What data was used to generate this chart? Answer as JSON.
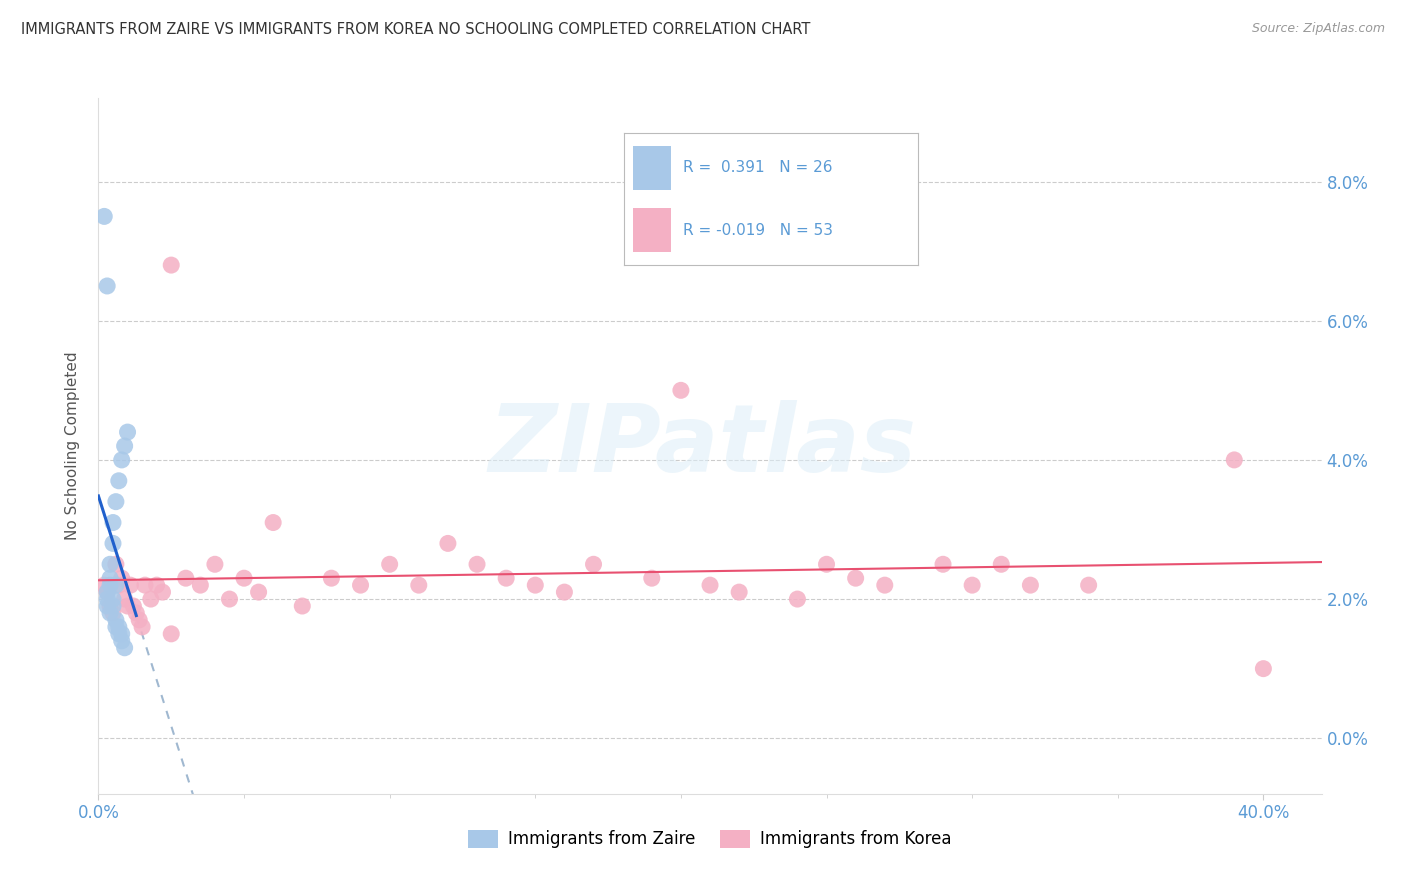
{
  "title": "IMMIGRANTS FROM ZAIRE VS IMMIGRANTS FROM KOREA NO SCHOOLING COMPLETED CORRELATION CHART",
  "source": "Source: ZipAtlas.com",
  "ylabel": "No Schooling Completed",
  "xlim": [
    0.0,
    0.42
  ],
  "ylim": [
    -0.008,
    0.092
  ],
  "yticks": [
    0.0,
    0.02,
    0.04,
    0.06,
    0.08
  ],
  "xticks": [
    0.0,
    0.4
  ],
  "xtick_labels": [
    "0.0%",
    "40.0%"
  ],
  "ytick_labels": [
    "0.0%",
    "2.0%",
    "4.0%",
    "6.0%",
    "8.0%"
  ],
  "zaire_color": "#a8c8e8",
  "korea_color": "#f4b0c4",
  "zaire_line_color": "#2060cc",
  "korea_line_color": "#e85070",
  "dash_line_color": "#a0b8d0",
  "zaire_label": "Immigrants from Zaire",
  "korea_label": "Immigrants from Korea",
  "zaire_R": "0.391",
  "zaire_N": 26,
  "korea_R": "-0.019",
  "korea_N": 53,
  "background_color": "#ffffff",
  "grid_color": "#cccccc",
  "axis_label_color": "#5b9bd5",
  "legend_text_color": "#5b9bd5",
  "title_color": "#333333",
  "source_color": "#999999",
  "watermark_text": "ZIPatlas",
  "watermark_color": "#ddeef8",
  "zaire_scatter_x": [
    0.002,
    0.003,
    0.003,
    0.004,
    0.004,
    0.005,
    0.005,
    0.006,
    0.006,
    0.007,
    0.007,
    0.008,
    0.008,
    0.009,
    0.01,
    0.004,
    0.005,
    0.006,
    0.007,
    0.008,
    0.009,
    0.003,
    0.004,
    0.003,
    0.005,
    0.006
  ],
  "zaire_scatter_y": [
    0.075,
    0.065,
    0.02,
    0.022,
    0.025,
    0.028,
    0.031,
    0.034,
    0.016,
    0.037,
    0.015,
    0.04,
    0.014,
    0.042,
    0.044,
    0.018,
    0.019,
    0.017,
    0.016,
    0.015,
    0.013,
    0.021,
    0.023,
    0.019,
    0.02,
    0.022
  ],
  "korea_scatter_x": [
    0.002,
    0.003,
    0.004,
    0.005,
    0.006,
    0.007,
    0.008,
    0.009,
    0.01,
    0.011,
    0.012,
    0.013,
    0.014,
    0.015,
    0.016,
    0.018,
    0.02,
    0.022,
    0.025,
    0.03,
    0.035,
    0.04,
    0.045,
    0.05,
    0.055,
    0.06,
    0.07,
    0.08,
    0.09,
    0.1,
    0.11,
    0.12,
    0.13,
    0.14,
    0.15,
    0.16,
    0.17,
    0.19,
    0.2,
    0.21,
    0.22,
    0.24,
    0.25,
    0.26,
    0.27,
    0.29,
    0.3,
    0.31,
    0.32,
    0.34,
    0.39,
    0.4,
    0.025
  ],
  "korea_scatter_y": [
    0.022,
    0.021,
    0.019,
    0.018,
    0.025,
    0.022,
    0.023,
    0.02,
    0.019,
    0.022,
    0.019,
    0.018,
    0.017,
    0.016,
    0.022,
    0.02,
    0.022,
    0.021,
    0.068,
    0.023,
    0.022,
    0.025,
    0.02,
    0.023,
    0.021,
    0.031,
    0.019,
    0.023,
    0.022,
    0.025,
    0.022,
    0.028,
    0.025,
    0.023,
    0.022,
    0.021,
    0.025,
    0.023,
    0.05,
    0.022,
    0.021,
    0.02,
    0.025,
    0.023,
    0.022,
    0.025,
    0.022,
    0.025,
    0.022,
    0.022,
    0.04,
    0.01,
    0.015
  ]
}
